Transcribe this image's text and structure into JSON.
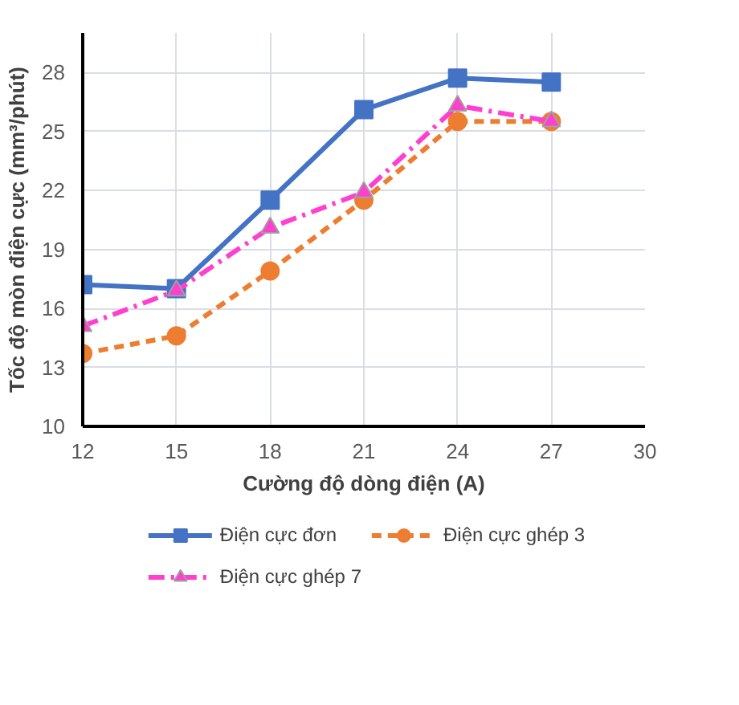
{
  "chart_data": {
    "type": "line",
    "xlabel": "Cường độ dòng điện (A)",
    "ylabel": "Tốc độ mòn điện cực (mm³/phút)",
    "x": [
      12,
      15,
      18,
      21,
      24,
      27
    ],
    "xlim": [
      12,
      30
    ],
    "xticks": [
      12,
      15,
      18,
      21,
      24,
      27,
      30
    ],
    "ylim": [
      10,
      30
    ],
    "yticks": [
      10,
      13,
      16,
      19,
      22,
      25,
      28
    ],
    "grid": true,
    "legend": "bottom",
    "series": [
      {
        "name": "Điện cực đơn",
        "color": "#4472c4",
        "marker": "square",
        "line_style": "solid",
        "values": [
          17.2,
          17.0,
          21.5,
          26.1,
          27.7,
          27.5
        ]
      },
      {
        "name": "Điện cực ghép 3",
        "color": "#ed7d31",
        "marker": "circle",
        "line_style": "dashed",
        "values": [
          13.7,
          14.6,
          17.9,
          21.5,
          25.5,
          25.5
        ]
      },
      {
        "name": "Điện cực ghép 7",
        "color": "#ff3fd0",
        "marker": "triangle",
        "line_style": "dashdot",
        "values": [
          15.1,
          16.9,
          20.1,
          21.9,
          26.3,
          25.5
        ]
      }
    ]
  }
}
